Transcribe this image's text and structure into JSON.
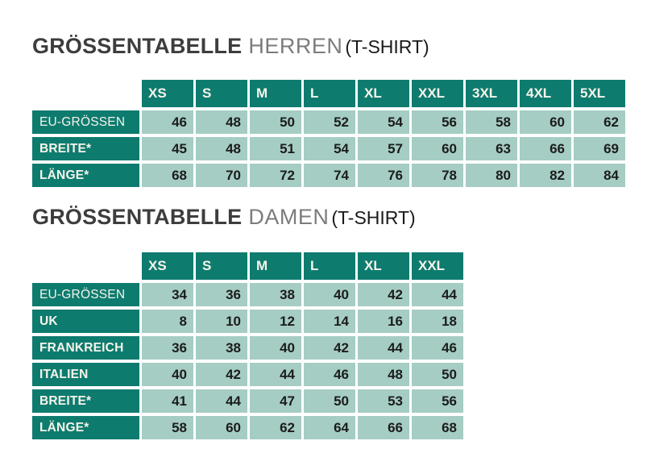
{
  "colors": {
    "teal": "#0e7b6f",
    "cell_green": "#a5cdc4",
    "title_main": "#3d3d3d",
    "title_sub": "#7c7c7c",
    "number_text": "#1c1c1c",
    "header_text": "#f7f4ea"
  },
  "sections": [
    {
      "title": {
        "main": "GRÖSSENTABELLE",
        "sub": "HERREN",
        "suffix": "(T-SHIRT)"
      },
      "table": {
        "columns": [
          "XS",
          "S",
          "M",
          "L",
          "XL",
          "XXL",
          "3XL",
          "4XL",
          "5XL"
        ],
        "rows": [
          {
            "label": "EU-GRÖSSEN",
            "values": [
              46,
              48,
              50,
              52,
              54,
              56,
              58,
              60,
              62
            ]
          },
          {
            "label": "BREITE*",
            "values": [
              45,
              48,
              51,
              54,
              57,
              60,
              63,
              66,
              69
            ]
          },
          {
            "label": "LÄNGE*",
            "values": [
              68,
              70,
              72,
              74,
              76,
              78,
              80,
              82,
              84
            ]
          }
        ]
      }
    },
    {
      "title": {
        "main": "GRÖSSENTABELLE",
        "sub": "DAMEN",
        "suffix": "(T-SHIRT)"
      },
      "table": {
        "columns": [
          "XS",
          "S",
          "M",
          "L",
          "XL",
          "XXL"
        ],
        "rows": [
          {
            "label": "EU-GRÖSSEN",
            "values": [
              34,
              36,
              38,
              40,
              42,
              44
            ]
          },
          {
            "label": "UK",
            "values": [
              8,
              10,
              12,
              14,
              16,
              18
            ]
          },
          {
            "label": "FRANKREICH",
            "values": [
              36,
              38,
              40,
              42,
              44,
              46
            ]
          },
          {
            "label": "ITALIEN",
            "values": [
              40,
              42,
              44,
              46,
              48,
              50
            ]
          },
          {
            "label": "BREITE*",
            "values": [
              41,
              44,
              47,
              50,
              53,
              56
            ]
          },
          {
            "label": "LÄNGE*",
            "values": [
              58,
              60,
              62,
              64,
              66,
              68
            ]
          }
        ]
      }
    }
  ]
}
